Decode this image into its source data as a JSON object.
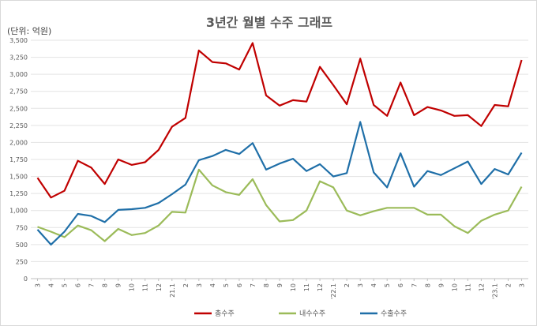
{
  "chart_data": {
    "type": "line",
    "title": "3년간 월별 수주 그래프",
    "unit_label": "(단위: 억원)",
    "xlabel": "",
    "ylabel": "",
    "ylim": [
      0,
      3500
    ],
    "y_ticks": [
      0,
      250,
      500,
      750,
      1000,
      1250,
      1500,
      1750,
      2000,
      2250,
      2500,
      2750,
      3000,
      3250,
      3500
    ],
    "y_tick_labels": [
      "0",
      "250",
      "500",
      "750",
      "1,000",
      "1,250",
      "1,500",
      "1,750",
      "2,000",
      "2,250",
      "2,500",
      "2,750",
      "3,000",
      "3,250",
      "3,500"
    ],
    "grid": true,
    "legend_position": "bottom",
    "categories": [
      "3",
      "4",
      "5",
      "6",
      "7",
      "8",
      "9",
      "10",
      "11",
      "12",
      "21.1",
      "2",
      "3",
      "4",
      "5",
      "6",
      "7",
      "8",
      "9",
      "10",
      "11",
      "12",
      "'22.1",
      "2",
      "3",
      "4",
      "5",
      "6",
      "7",
      "8",
      "9",
      "10",
      "11",
      "12",
      "'23.1",
      "2",
      "3"
    ],
    "series": [
      {
        "name": "총수주",
        "color": "#c00000",
        "values": [
          1480,
          1190,
          1290,
          1730,
          1630,
          1390,
          1750,
          1670,
          1710,
          1890,
          2230,
          2360,
          3350,
          3180,
          3160,
          3070,
          3460,
          2690,
          2540,
          2620,
          2600,
          3110,
          2840,
          2560,
          3230,
          2550,
          2390,
          2880,
          2400,
          2520,
          2470,
          2390,
          2400,
          2240,
          2550,
          2530,
          3210
        ]
      },
      {
        "name": "내수수주",
        "color": "#9bbb59",
        "values": [
          760,
          690,
          610,
          780,
          710,
          550,
          730,
          640,
          670,
          780,
          980,
          970,
          1600,
          1370,
          1270,
          1230,
          1460,
          1080,
          840,
          860,
          1000,
          1430,
          1340,
          1000,
          930,
          990,
          1040,
          1040,
          1040,
          940,
          940,
          770,
          670,
          850,
          940,
          1000,
          1350
        ]
      },
      {
        "name": "수출수주",
        "color": "#1f6fa8",
        "values": [
          720,
          500,
          690,
          950,
          920,
          830,
          1010,
          1020,
          1040,
          1110,
          1240,
          1380,
          1740,
          1800,
          1890,
          1830,
          1990,
          1600,
          1690,
          1760,
          1580,
          1680,
          1500,
          1550,
          2300,
          1560,
          1340,
          1840,
          1350,
          1580,
          1520,
          1620,
          1720,
          1390,
          1610,
          1530,
          1850
        ]
      }
    ]
  }
}
